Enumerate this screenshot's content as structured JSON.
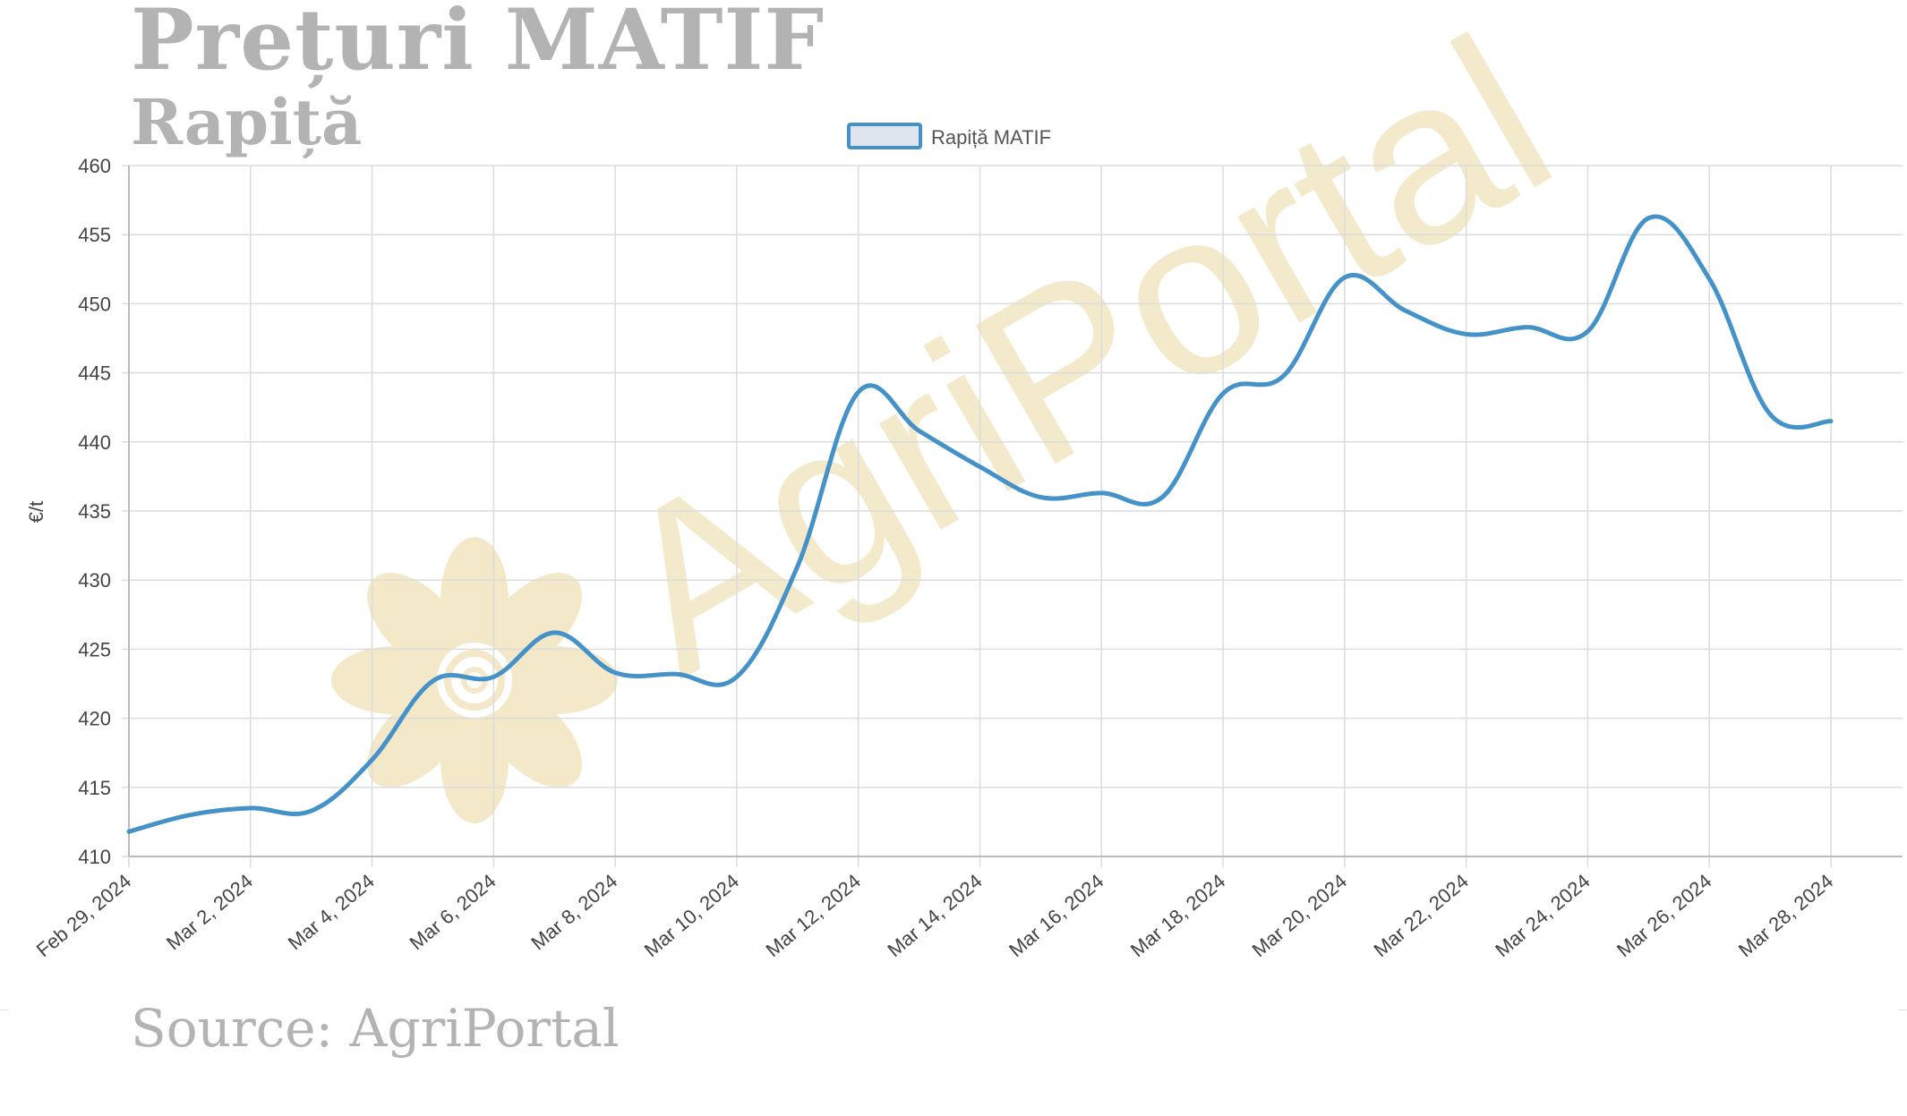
{
  "page": {
    "title": "Prețuri MATIF",
    "subtitle": "Rapiță",
    "source": "Source: AgriPortal",
    "watermark": "AgriPortal"
  },
  "colors": {
    "line": "#4592c8",
    "legend_fill": "#dfe5ef",
    "grid": "#dcdcdc",
    "axis": "#bbbbbb",
    "tick_text": "#444444",
    "heading": "#b3b3b3",
    "watermark": "#f2e6c2"
  },
  "chart_data": {
    "type": "line",
    "ylabel": "€/t",
    "ylim": [
      410,
      460
    ],
    "ytick_step": 5,
    "grid": true,
    "legend_position": "top-center",
    "x_tick_labels": [
      "Feb 29, 2024",
      "Mar 2, 2024",
      "Mar 4, 2024",
      "Mar 6, 2024",
      "Mar 8, 2024",
      "Mar 10, 2024",
      "Mar 12, 2024",
      "Mar 14, 2024",
      "Mar 16, 2024",
      "Mar 18, 2024",
      "Mar 20, 2024",
      "Mar 22, 2024",
      "Mar 24, 2024",
      "Mar 26, 2024",
      "Mar 28, 2024"
    ],
    "xlim": [
      "2024-02-29",
      "2024-03-28"
    ],
    "series": [
      {
        "name": "Rapiță MATIF",
        "points": [
          [
            "2024-02-29",
            411.8
          ],
          [
            "2024-03-01",
            413.0
          ],
          [
            "2024-03-02",
            413.5
          ],
          [
            "2024-03-03",
            413.3
          ],
          [
            "2024-03-04",
            417.0
          ],
          [
            "2024-03-05",
            422.7
          ],
          [
            "2024-03-06",
            423.0
          ],
          [
            "2024-03-07",
            426.2
          ],
          [
            "2024-03-08",
            423.3
          ],
          [
            "2024-03-09",
            423.2
          ],
          [
            "2024-03-10",
            423.0
          ],
          [
            "2024-03-11",
            431.0
          ],
          [
            "2024-03-12",
            443.6
          ],
          [
            "2024-03-13",
            440.8
          ],
          [
            "2024-03-14",
            438.2
          ],
          [
            "2024-03-15",
            436.0
          ],
          [
            "2024-03-16",
            436.3
          ],
          [
            "2024-03-17",
            436.0
          ],
          [
            "2024-03-18",
            443.5
          ],
          [
            "2024-03-19",
            444.8
          ],
          [
            "2024-03-20",
            451.9
          ],
          [
            "2024-03-21",
            449.5
          ],
          [
            "2024-03-22",
            447.8
          ],
          [
            "2024-03-23",
            448.3
          ],
          [
            "2024-03-24",
            448.0
          ],
          [
            "2024-03-25",
            456.2
          ],
          [
            "2024-03-26",
            451.8
          ],
          [
            "2024-03-27",
            442.0
          ],
          [
            "2024-03-28",
            441.5
          ]
        ]
      }
    ]
  }
}
